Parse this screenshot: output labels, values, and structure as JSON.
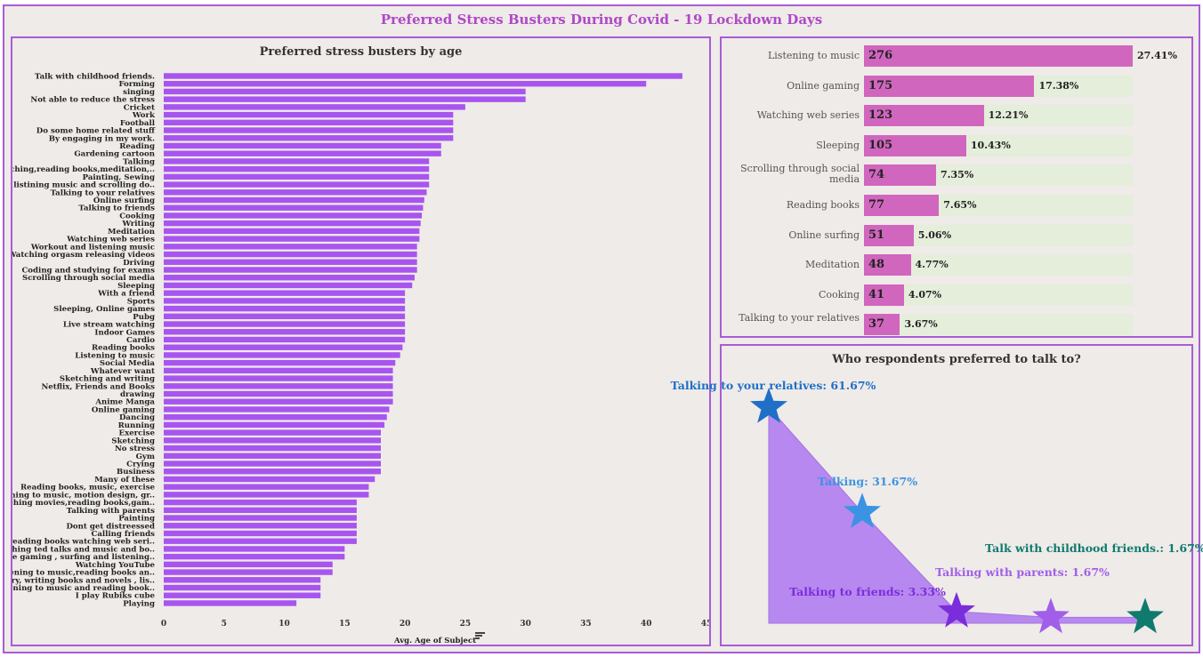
{
  "dashboard": {
    "title": "Preferred Stress Busters During Covid - 19 Lockdown Days"
  },
  "chart_data": [
    {
      "type": "bar",
      "orientation": "horizontal",
      "title": "Preferred stress busters by age",
      "xlabel": "Avg. Age of Subject",
      "xlim": [
        0,
        45
      ],
      "xticks": [
        0,
        5,
        10,
        15,
        20,
        25,
        30,
        35,
        40,
        45
      ],
      "categories": [
        "Talk with childhood friends.",
        "Forming",
        "singing",
        "Not able to reduce the stress",
        "Cricket",
        "Work",
        "Football",
        "Do some home related stuff",
        "By engaging in my work.",
        "Reading",
        "Gardening cartoon",
        "Talking",
        "Sketching,reading books,meditation,..",
        "Painting, Sewing",
        "Both listining music and scrolling do..",
        "Talking to your relatives",
        "Online surfing",
        "Talking to friends",
        "Cooking",
        "Writing",
        "Meditation",
        "Watching web series",
        "Workout and listening music",
        "Watching orgasm releasing videos",
        "Driving",
        "Coding and studying for exams",
        "Scrolling through social media",
        "Sleeping",
        "With a friend",
        "Sports",
        "Sleeping, Online games",
        "Pubg",
        "Live stream watching",
        "Indoor Games",
        "Cardio",
        "Reading books",
        "Listening to music",
        "Social Media",
        "Whatever want",
        "Sketching and writing",
        "Netflix, Friends and Books",
        "drawing",
        "Anime Manga",
        "Online gaming",
        "Dancing",
        "Running",
        "Exercise",
        "Sketching",
        "No stress",
        "Gym",
        "Crying",
        "Business",
        "Many of these",
        "Reading books, music, exercise",
        "Listening to music, motion design, gr..",
        "Watching movies,reading books,gam..",
        "Talking with parents",
        "Painting",
        "Dont get distreessed",
        "Calling friends",
        "All reading books watching web seri..",
        "Watching ted talks and music and bo..",
        "Online gaming , surfing and listening..",
        "Watching YouTube",
        "Listening to music,reading books an..",
        "Poetry, writing books and novels , lis..",
        "Listening to music and reading book..",
        "I play Rubiks cube",
        "Playing"
      ],
      "values": [
        43,
        40,
        30,
        30,
        25,
        24,
        24,
        24,
        24,
        23,
        23,
        22,
        22,
        22,
        22,
        21.8,
        21.6,
        21.5,
        21.4,
        21.3,
        21.2,
        21.2,
        21,
        21,
        21,
        21,
        20.8,
        20.6,
        20,
        20,
        20,
        20,
        20,
        20,
        20,
        19.8,
        19.6,
        19.2,
        19,
        19,
        19,
        19,
        19,
        18.7,
        18.5,
        18.3,
        18,
        18,
        18,
        18,
        18,
        18,
        17.5,
        17,
        17,
        16,
        16,
        16,
        16,
        16,
        16,
        15,
        15,
        14,
        14,
        13,
        13,
        13,
        11
      ]
    },
    {
      "type": "bar",
      "orientation": "horizontal",
      "categories": [
        "Listening to music",
        "Online gaming",
        "Watching web series",
        "Sleeping",
        "Scrolling through social media",
        "Reading books",
        "Online surfing",
        "Meditation",
        "Cooking",
        "Talking to your relatives"
      ],
      "values": [
        276,
        175,
        123,
        105,
        74,
        77,
        51,
        48,
        41,
        37
      ],
      "percent_labels": [
        "27.41%",
        "17.38%",
        "12.21%",
        "10.43%",
        "7.35%",
        "7.65%",
        "5.06%",
        "4.77%",
        "4.07%",
        "3.67%"
      ]
    },
    {
      "type": "area",
      "title": "Who respondents preferred to talk to?",
      "categories": [
        "Talking to your relatives",
        "Talking",
        "Talking to friends",
        "Talking with parents",
        "Talk with childhood friends."
      ],
      "values": [
        61.67,
        31.67,
        3.33,
        1.67,
        1.67
      ],
      "labels": [
        "Talking to your relatives:  61.67%",
        "Talking:  31.67%",
        "Talking to friends:  3.33%",
        "Talking with parents:  1.67%",
        "Talk with childhood friends.:  1.67%"
      ],
      "marker_colors": [
        "#1f6fc7",
        "#3b93e4",
        "#7b2ddb",
        "#a15ee8",
        "#0f7a6e"
      ],
      "label_colors": [
        "#1f6fc7",
        "#3b93e4",
        "#7b2ddb",
        "#a15ee8",
        "#0f7a6e"
      ],
      "fill_color": "#b27ef0"
    }
  ],
  "colors": {
    "border": "#a85cd8",
    "bar_left": "#a855f0",
    "bar_right": "#d166be",
    "bar_bg": "#e4eedb"
  }
}
